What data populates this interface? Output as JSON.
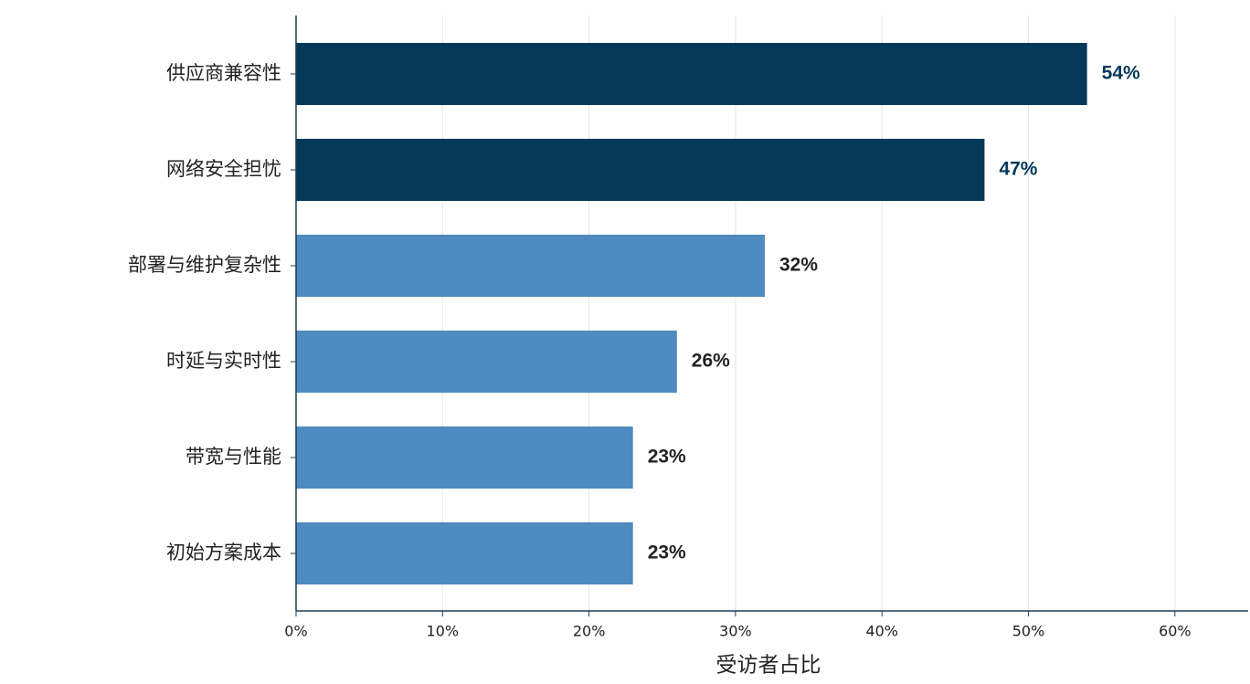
{
  "chart_data": {
    "type": "bar",
    "orientation": "horizontal",
    "x_label": "受访者占比",
    "categories": [
      "供应商兼容性",
      "网络安全担忧",
      "部署与维护复杂性",
      "时延与实时性",
      "带宽与性能",
      "初始方案成本"
    ],
    "values": [
      54,
      47,
      32,
      26,
      23,
      23
    ],
    "value_labels": [
      "54%",
      "47%",
      "32%",
      "26%",
      "23%",
      "23%"
    ],
    "colors": [
      "#06385a",
      "#06385a",
      "#4d8bc0",
      "#4d8bc0",
      "#4d8bc0",
      "#4d8bc0"
    ],
    "label_colors": [
      "#06385a",
      "#06385a",
      "#222222",
      "#222222",
      "#222222",
      "#222222"
    ],
    "xlim": [
      0,
      65
    ],
    "xticks": [
      {
        "value": 0,
        "label": "0%"
      },
      {
        "value": 10,
        "label": "10%"
      },
      {
        "value": 20,
        "label": "20%"
      },
      {
        "value": 30,
        "label": "30%"
      },
      {
        "value": 40,
        "label": "40%"
      },
      {
        "value": 50,
        "label": "50%"
      },
      {
        "value": 60,
        "label": "60%"
      }
    ],
    "grid": true
  }
}
